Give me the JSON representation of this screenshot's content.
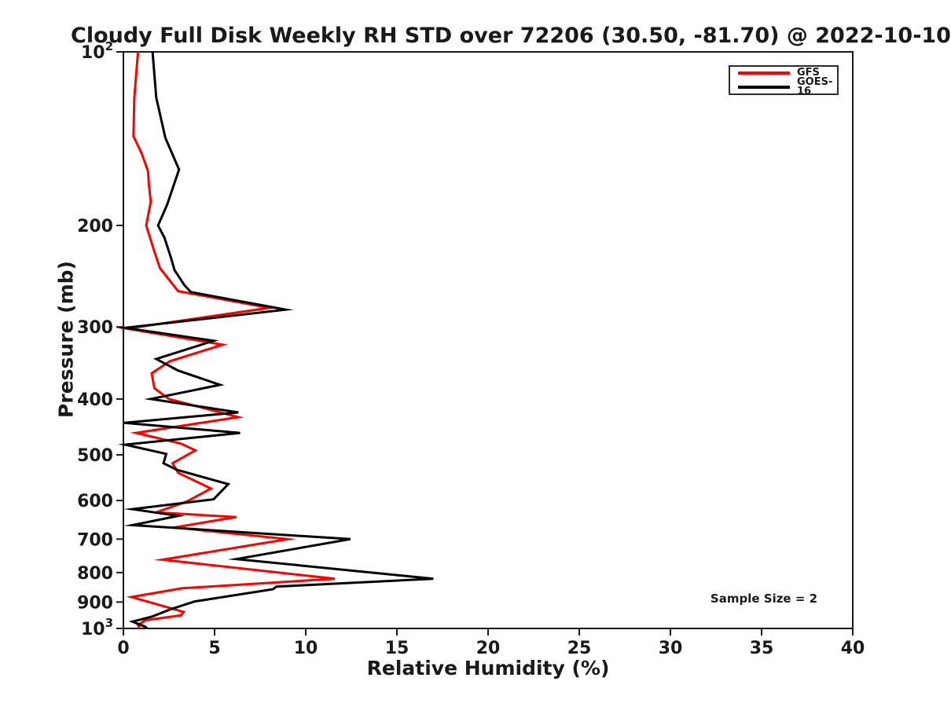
{
  "title": "Cloudy Full Disk Weekly RH STD over 72206 (30.50, -81.70) @ 2022-10-10",
  "annotation": "Sample Size = 2",
  "colors": {
    "gfs_line": "#ff0000",
    "goes16_line": "#000000",
    "text": "#1a1a1a",
    "frame": "#1a1a1a",
    "background": "#ffffff",
    "legend_border": "#2b2b2b"
  },
  "legend": {
    "items": [
      {
        "label": "GFS",
        "color": "#ff0000"
      },
      {
        "label": "GOES-16",
        "color": "#000000"
      }
    ]
  },
  "chart_data": {
    "type": "line",
    "title": "Cloudy Full Disk Weekly RH STD over 72206 (30.50, -81.70) @ 2022-10-10",
    "xlabel": "Relative Humidity (%)",
    "ylabel": "Pressure (mb)",
    "xlim": [
      0,
      40
    ],
    "ylim": [
      100,
      1000
    ],
    "yscale": "log",
    "y_inverted": true,
    "grid": false,
    "legend_position": "upper right",
    "annotation": {
      "text": "Sample Size = 2",
      "x_rh": 35.1,
      "y_mb": 888
    },
    "x_ticks": [
      0,
      5,
      10,
      15,
      20,
      25,
      30,
      35,
      40
    ],
    "y_ticks": [
      {
        "value": 100,
        "label": "10^2"
      },
      {
        "value": 200,
        "label": "200"
      },
      {
        "value": 300,
        "label": "300"
      },
      {
        "value": 400,
        "label": "400"
      },
      {
        "value": 500,
        "label": "500"
      },
      {
        "value": 600,
        "label": "600"
      },
      {
        "value": 700,
        "label": "700"
      },
      {
        "value": 800,
        "label": "800"
      },
      {
        "value": 900,
        "label": "900"
      },
      {
        "value": 1000,
        "label": "10^3"
      }
    ],
    "series": [
      {
        "name": "GFS",
        "color": "#ff0000",
        "points_format": [
          "pressure_mb",
          "rh_std_percent"
        ],
        "points": [
          [
            100,
            0.8
          ],
          [
            120,
            0.6
          ],
          [
            140,
            0.55
          ],
          [
            150,
            1.0
          ],
          [
            161,
            1.35
          ],
          [
            170,
            1.4
          ],
          [
            182,
            1.5
          ],
          [
            200,
            1.25
          ],
          [
            222,
            1.7
          ],
          [
            237,
            2.0
          ],
          [
            260,
            3.0
          ],
          [
            278,
            8.0
          ],
          [
            302,
            0.2
          ],
          [
            322,
            5.45
          ],
          [
            344,
            2.55
          ],
          [
            361,
            1.55
          ],
          [
            383,
            1.7
          ],
          [
            400,
            2.5
          ],
          [
            430,
            6.3
          ],
          [
            458,
            0.7
          ],
          [
            478,
            3.15
          ],
          [
            491,
            3.95
          ],
          [
            517,
            2.7
          ],
          [
            537,
            3.0
          ],
          [
            572,
            4.8
          ],
          [
            602,
            3.5
          ],
          [
            629,
            1.8
          ],
          [
            641,
            6.2
          ],
          [
            668,
            2.8
          ],
          [
            700,
            9.0
          ],
          [
            760,
            2.15
          ],
          [
            820,
            11.6
          ],
          [
            852,
            3.2
          ],
          [
            882,
            0.45
          ],
          [
            936,
            3.3
          ],
          [
            949,
            3.15
          ],
          [
            968,
            1.2
          ],
          [
            987,
            0.8
          ],
          [
            1000,
            0.9
          ]
        ]
      },
      {
        "name": "GOES-16",
        "color": "#000000",
        "points_format": [
          "pressure_mb",
          "rh_std_percent"
        ],
        "points": [
          [
            100,
            1.6
          ],
          [
            120,
            1.8
          ],
          [
            141,
            2.3
          ],
          [
            160,
            3.05
          ],
          [
            184,
            2.4
          ],
          [
            200,
            1.9
          ],
          [
            210,
            2.25
          ],
          [
            227,
            2.6
          ],
          [
            239,
            2.8
          ],
          [
            254,
            3.35
          ],
          [
            261,
            3.7
          ],
          [
            280,
            8.9
          ],
          [
            301,
            0.1
          ],
          [
            317,
            4.95
          ],
          [
            341,
            1.8
          ],
          [
            357,
            3.0
          ],
          [
            378,
            5.3
          ],
          [
            400,
            1.5
          ],
          [
            422,
            6.3
          ],
          [
            440,
            0.05
          ],
          [
            458,
            6.4
          ],
          [
            480,
            0.1
          ],
          [
            498,
            2.35
          ],
          [
            517,
            2.2
          ],
          [
            531,
            2.95
          ],
          [
            562,
            5.75
          ],
          [
            597,
            4.95
          ],
          [
            621,
            0.5
          ],
          [
            638,
            3.0
          ],
          [
            662,
            0.5
          ],
          [
            700,
            12.45
          ],
          [
            758,
            6.2
          ],
          [
            820,
            17.0
          ],
          [
            846,
            8.4
          ],
          [
            855,
            8.2
          ],
          [
            898,
            3.9
          ],
          [
            926,
            2.6
          ],
          [
            953,
            1.6
          ],
          [
            973,
            0.5
          ],
          [
            993,
            1.2
          ],
          [
            1000,
            1.3
          ]
        ]
      }
    ]
  }
}
